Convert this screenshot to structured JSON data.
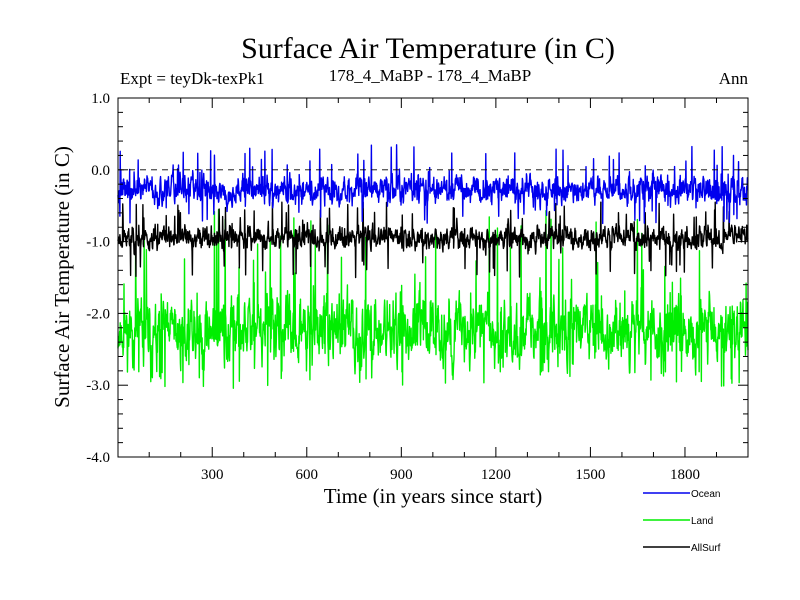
{
  "chart_data": {
    "type": "line",
    "title": "Surface Air Temperature (in C)",
    "subtitle_left": "Expt = teyDk-texPk1",
    "subtitle_center": "178_4_MaBP - 178_4_MaBP",
    "subtitle_right": "Ann",
    "xlabel": "Time (in years since start)",
    "ylabel": "Surface Air Temperature (in C)",
    "xlim": [
      1,
      2000
    ],
    "ylim": [
      -4.0,
      1.0
    ],
    "x_ticks": [
      300,
      600,
      900,
      1200,
      1500,
      1800
    ],
    "x_tick_labels": [
      "300",
      "600",
      "900",
      "1200",
      "1500",
      "1800"
    ],
    "y_ticks": [
      1.0,
      0.0,
      -1.0,
      -2.0,
      -3.0,
      -4.0
    ],
    "y_tick_labels": [
      "1.0",
      "0.0",
      "-1.0",
      "-2.0",
      "-3.0",
      "-4.0"
    ],
    "reference_line": {
      "y": 0.0,
      "style": "dashed"
    },
    "legend_position": "bottom-right, outside plot",
    "series": [
      {
        "name": "Land",
        "color": "#00ee00",
        "mean": -2.25,
        "noise": 0.26,
        "spike_range": [
          -1.95,
          -0.55
        ],
        "spike_rate": 0.035,
        "dip_min": -3.05,
        "seed": 11
      },
      {
        "name": "AllSurf",
        "color": "#000000",
        "mean": -0.95,
        "noise": 0.09,
        "spike_range": [
          -0.85,
          -0.45
        ],
        "spike_rate": 0.035,
        "dip_min": -1.5,
        "seed": 23
      },
      {
        "name": "Ocean",
        "color": "#0000ee",
        "mean": -0.28,
        "noise": 0.11,
        "spike_range": [
          -0.15,
          0.35
        ],
        "spike_rate": 0.03,
        "dip_min": -0.75,
        "seed": 37
      }
    ],
    "legend": [
      {
        "name": "Ocean",
        "color": "#0000ee"
      },
      {
        "name": "Land",
        "color": "#00ee00"
      },
      {
        "name": "AllSurf",
        "color": "#000000"
      }
    ]
  }
}
